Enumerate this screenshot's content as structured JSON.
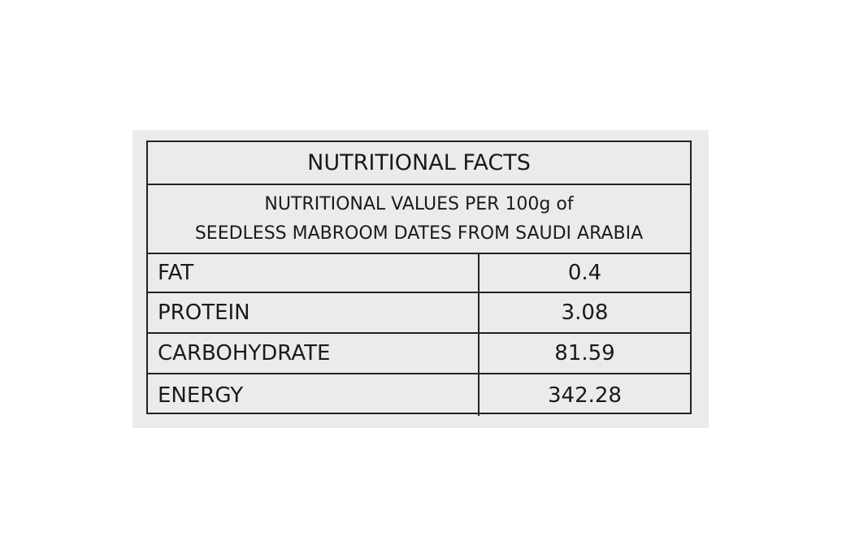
{
  "table": {
    "title": "NUTRITIONAL FACTS",
    "subtitle": [
      "NUTRITIONAL VALUES PER 100g of",
      "SEEDLESS MABROOM DATES FROM SAUDI ARABIA"
    ],
    "rows": [
      [
        "FAT",
        0.4
      ],
      [
        "PROTEIN",
        3.08
      ],
      [
        "CARBOHYDRATE",
        81.59
      ],
      [
        "ENERGY",
        342.28
      ]
    ]
  }
}
